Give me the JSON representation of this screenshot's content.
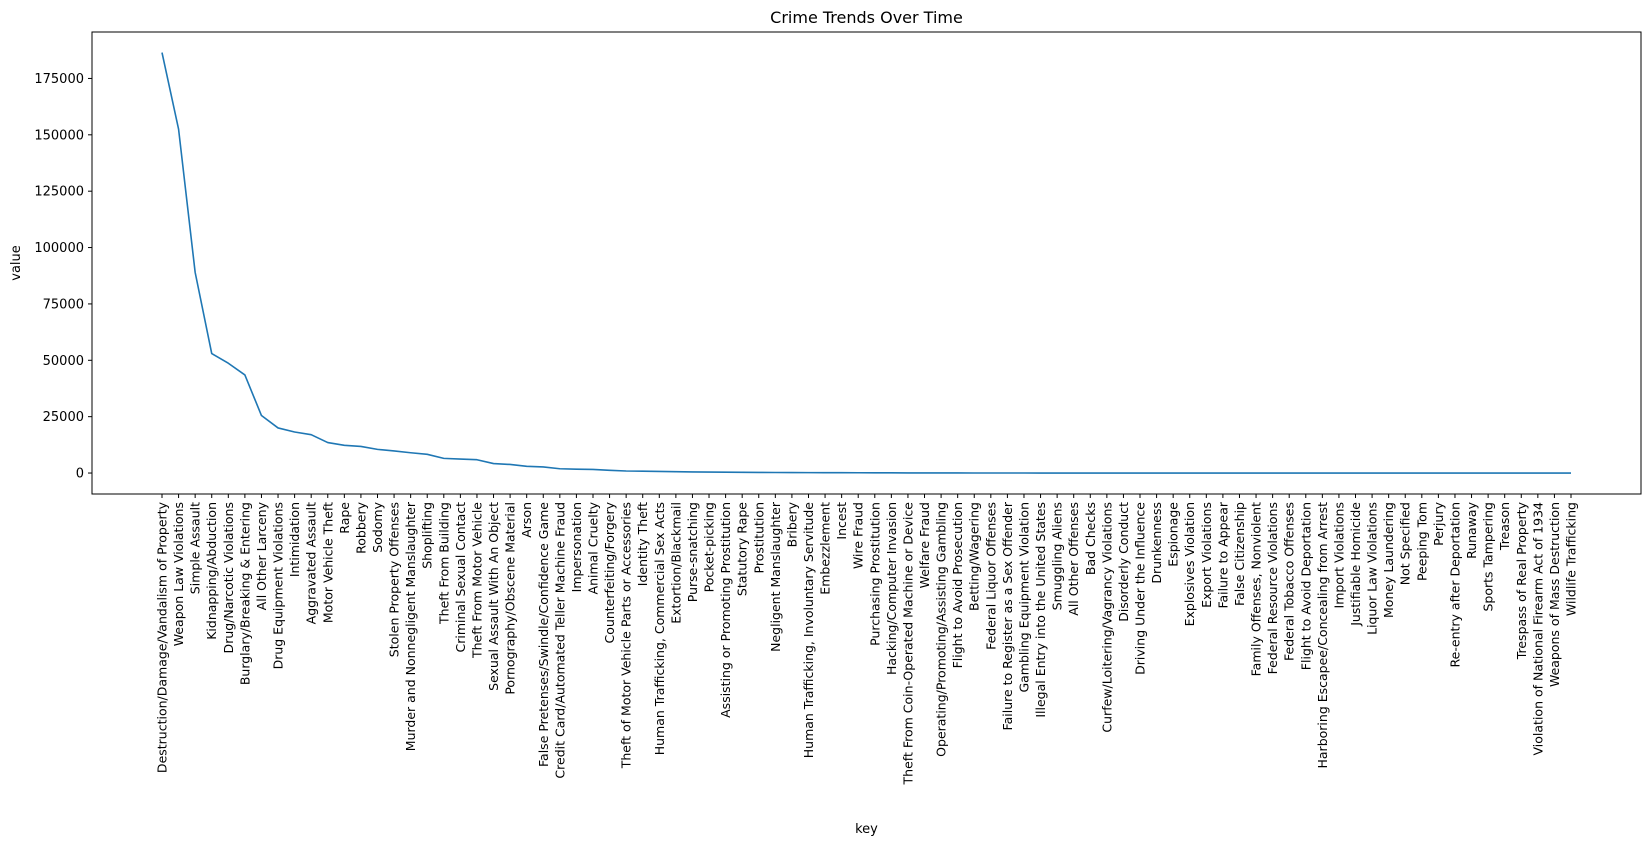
{
  "chart_data": {
    "type": "line",
    "title": "Crime Trends Over Time",
    "xlabel": "key",
    "ylabel": "value",
    "ylim": [
      -9300,
      195600
    ],
    "yticks": [
      0,
      25000,
      50000,
      75000,
      100000,
      125000,
      150000,
      175000
    ],
    "ytick_labels": [
      "0",
      "25000",
      "50000",
      "75000",
      "100000",
      "125000",
      "150000",
      "175000"
    ],
    "grid": false,
    "legend": "none",
    "line_color": "#1f77b4",
    "categories": [
      "Destruction/Damage/Vandalism of Property",
      "Weapon Law Violations",
      "Simple Assault",
      "Kidnapping/Abduction",
      "Drug/Narcotic Violations",
      "Burglary/Breaking & Entering",
      "All Other Larceny",
      "Drug Equipment Violations",
      "Intimidation",
      "Aggravated Assault",
      "Motor Vehicle Theft",
      "Rape",
      "Robbery",
      "Sodomy",
      "Stolen Property Offenses",
      "Murder and Nonnegligent Manslaughter",
      "Shoplifting",
      "Theft From Building",
      "Criminal Sexual Contact",
      "Theft From Motor Vehicle",
      "Sexual Assault With An Object",
      "Pornography/Obscene Material",
      "Arson",
      "False Pretenses/Swindle/Confidence Game",
      "Credit Card/Automated Teller Machine Fraud",
      "Impersonation",
      "Animal Cruelty",
      "Counterfeiting/Forgery",
      "Theft of Motor Vehicle Parts or Accessories",
      "Identity Theft",
      "Human Trafficking, Commercial Sex Acts",
      "Extortion/Blackmail",
      "Purse-snatching",
      "Pocket-picking",
      "Assisting or Promoting Prostitution",
      "Statutory Rape",
      "Prostitution",
      "Negligent Manslaughter",
      "Bribery",
      "Human Trafficking, Involuntary Servitude",
      "Embezzlement",
      "Incest",
      "Wire Fraud",
      "Purchasing Prostitution",
      "Hacking/Computer Invasion",
      "Theft From Coin-Operated Machine or Device",
      "Welfare Fraud",
      "Operating/Promoting/Assisting Gambling",
      "Flight to Avoid Prosecution",
      "Betting/Wagering",
      "Federal Liquor Offenses",
      "Failure to Register as a Sex Offender",
      "Gambling Equipment Violation",
      "Illegal Entry into the United States",
      "Smuggling Aliens",
      "All Other Offenses",
      "Bad Checks",
      "Curfew/Loitering/Vagrancy Violations",
      "Disorderly Conduct",
      "Driving Under the Influence",
      "Drunkenness",
      "Espionage",
      "Explosives Violation",
      "Export Violations",
      "Failure to Appear",
      "False Citizenship",
      "Family Offenses, Nonviolent",
      "Federal Resource Violations",
      "Federal Tobacco Offenses",
      "Flight to Avoid Deportation",
      "Harboring Escapee/Concealing from Arrest",
      "Import Violations",
      "Justifiable Homicide",
      "Liquor Law Violations",
      "Money Laundering",
      "Not Specified",
      "Peeping Tom",
      "Perjury",
      "Re-entry after Deportation",
      "Runaway",
      "Sports Tampering",
      "Treason",
      "Trespass of Real Property",
      "Violation of National Firearm Act of 1934",
      "Weapons of Mass Destruction",
      "Wildlife Trafficking"
    ],
    "series": [
      {
        "values": [
          186500,
          152500,
          89000,
          53000,
          48700,
          43500,
          25500,
          20000,
          18200,
          17000,
          13500,
          12300,
          11800,
          10500,
          9800,
          9000,
          8300,
          6500,
          6200,
          5900,
          4200,
          3800,
          3000,
          2700,
          1900,
          1700,
          1600,
          1200,
          900,
          800,
          700,
          600,
          500,
          450,
          380,
          320,
          270,
          230,
          200,
          180,
          160,
          140,
          120,
          100,
          80,
          60,
          50,
          40,
          30,
          20,
          15,
          10,
          8,
          5,
          3,
          0,
          0,
          0,
          0,
          0,
          0,
          0,
          0,
          0,
          0,
          0,
          0,
          0,
          0,
          0,
          0,
          0,
          0,
          0,
          0,
          0,
          0,
          0,
          0,
          0,
          0,
          0,
          0,
          0,
          0,
          0
        ]
      }
    ]
  }
}
